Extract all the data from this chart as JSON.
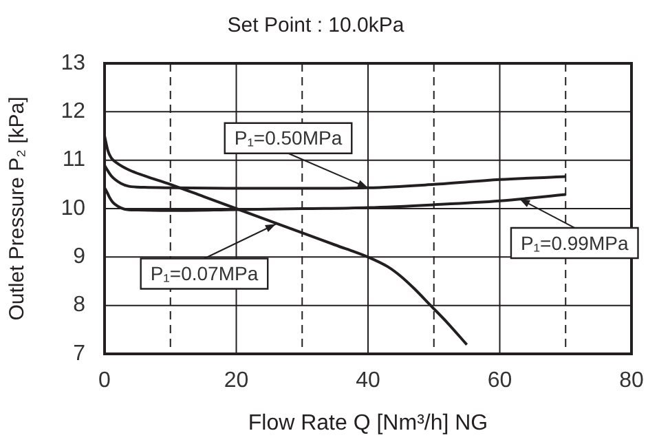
{
  "chart_data": {
    "type": "line",
    "title": "Set Point : 10.0kPa",
    "xlabel": "Flow Rate Q [Nm³/h] NG",
    "ylabel": "Outlet Pressure P₂ [kPa]",
    "xlim": [
      0,
      80
    ],
    "xticks": [
      0,
      20,
      40,
      60,
      80
    ],
    "ylim": [
      7,
      13
    ],
    "yticks": [
      7,
      8,
      9,
      10,
      11,
      12,
      13
    ],
    "grid": true,
    "legend": false,
    "marker": "none",
    "line_style": "solid",
    "series": [
      {
        "color": "#231f20",
        "x": [
          0,
          0.5,
          1,
          2,
          3.7,
          6,
          10,
          15,
          20,
          25,
          30,
          35,
          40,
          43,
          45,
          47,
          49.5,
          52,
          55
        ],
        "values": [
          11.5,
          11.2,
          11.05,
          10.93,
          10.8,
          10.68,
          10.5,
          10.25,
          10.0,
          9.75,
          9.5,
          9.25,
          9.0,
          8.8,
          8.6,
          8.35,
          8.0,
          7.65,
          7.19
        ]
      },
      {
        "color": "#231f20",
        "x": [
          0,
          0.5,
          1,
          1.6,
          2.5,
          3.7,
          6,
          10,
          20,
          30,
          40,
          50,
          60,
          70
        ],
        "values": [
          10.89,
          10.78,
          10.68,
          10.6,
          10.52,
          10.46,
          10.44,
          10.43,
          10.42,
          10.42,
          10.43,
          10.5,
          10.6,
          10.66
        ]
      },
      {
        "color": "#231f20",
        "x": [
          0,
          0.4,
          0.8,
          1.25,
          2,
          3,
          5,
          10,
          20,
          30,
          40,
          50,
          60,
          70
        ],
        "values": [
          10.43,
          10.33,
          10.22,
          10.13,
          10.05,
          9.99,
          9.97,
          9.96,
          9.98,
          10.0,
          10.02,
          10.08,
          10.16,
          10.29
        ]
      }
    ],
    "annotations": [
      {
        "text": "P₁=0.50MPa",
        "x": 40,
        "y": 10.43
      },
      {
        "text": "P₁=0.07MPa",
        "x": 26,
        "y": 9.68
      },
      {
        "text": "P₁=0.99MPa",
        "x": 63,
        "y": 10.2
      }
    ]
  }
}
